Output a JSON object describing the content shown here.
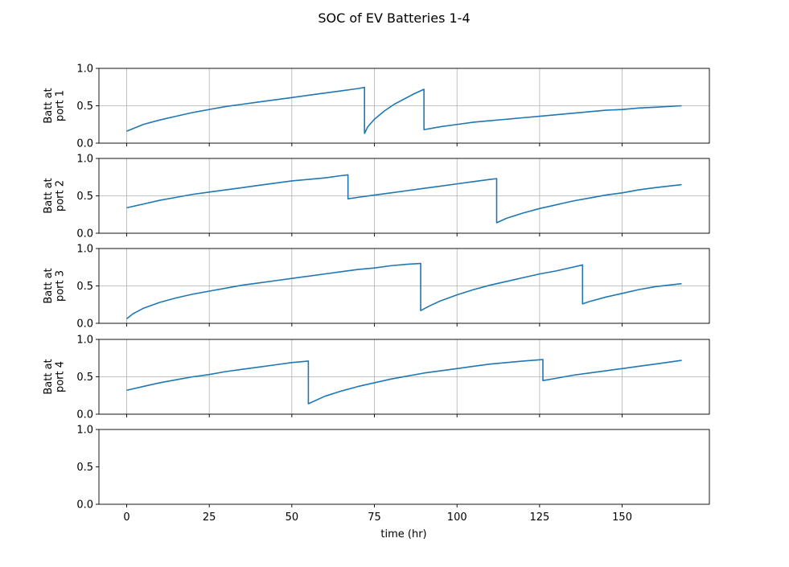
{
  "chart_data": {
    "type": "line",
    "title": "SOC of EV Batteries 1-4",
    "xlabel": "time (hr)",
    "xlim": [
      -8.4,
      176.4
    ],
    "xticks": [
      0,
      25,
      50,
      75,
      100,
      125,
      150
    ],
    "grid": true,
    "line_color": "#1f77b4",
    "subplots": [
      {
        "ylabel_lines": [
          "Batt at",
          "port 1"
        ],
        "ylim": [
          0,
          1
        ],
        "yticks": [
          "0.0",
          "0.5",
          "1.0"
        ],
        "x": [
          0,
          5,
          10,
          15,
          20,
          25,
          30,
          35,
          40,
          45,
          50,
          55,
          60,
          65,
          70,
          72,
          72,
          73,
          75,
          78,
          81,
          84,
          87,
          90,
          90,
          95,
          100,
          105,
          110,
          115,
          120,
          125,
          130,
          135,
          140,
          145,
          150,
          155,
          160,
          168
        ],
        "y": [
          0.16,
          0.25,
          0.31,
          0.36,
          0.41,
          0.45,
          0.49,
          0.52,
          0.55,
          0.58,
          0.61,
          0.64,
          0.67,
          0.7,
          0.73,
          0.745,
          0.13,
          0.22,
          0.32,
          0.43,
          0.52,
          0.59,
          0.66,
          0.72,
          0.18,
          0.22,
          0.25,
          0.28,
          0.3,
          0.32,
          0.34,
          0.36,
          0.38,
          0.4,
          0.42,
          0.44,
          0.45,
          0.47,
          0.48,
          0.5
        ]
      },
      {
        "ylabel_lines": [
          "Batt at",
          "port 2"
        ],
        "ylim": [
          0,
          1
        ],
        "yticks": [
          "0.0",
          "0.5",
          "1.0"
        ],
        "x": [
          0,
          5,
          10,
          15,
          20,
          25,
          30,
          35,
          40,
          45,
          50,
          55,
          60,
          65,
          67,
          67,
          70,
          75,
          80,
          85,
          90,
          95,
          100,
          105,
          110,
          112,
          112,
          115,
          120,
          125,
          130,
          135,
          140,
          145,
          150,
          155,
          160,
          168
        ],
        "y": [
          0.34,
          0.39,
          0.44,
          0.48,
          0.52,
          0.55,
          0.58,
          0.61,
          0.64,
          0.67,
          0.7,
          0.72,
          0.74,
          0.77,
          0.78,
          0.46,
          0.48,
          0.51,
          0.54,
          0.57,
          0.6,
          0.63,
          0.66,
          0.69,
          0.72,
          0.73,
          0.14,
          0.2,
          0.27,
          0.33,
          0.38,
          0.43,
          0.47,
          0.51,
          0.54,
          0.58,
          0.61,
          0.65
        ]
      },
      {
        "ylabel_lines": [
          "Batt at",
          "port 3"
        ],
        "ylim": [
          0,
          1
        ],
        "yticks": [
          "0.0",
          "0.5",
          "1.0"
        ],
        "x": [
          0,
          2,
          5,
          10,
          15,
          20,
          25,
          30,
          35,
          40,
          45,
          50,
          55,
          60,
          65,
          70,
          75,
          80,
          85,
          89,
          89,
          92,
          95,
          100,
          105,
          110,
          115,
          120,
          125,
          130,
          135,
          138,
          138,
          140,
          145,
          150,
          155,
          160,
          168
        ],
        "y": [
          0.06,
          0.13,
          0.2,
          0.28,
          0.34,
          0.39,
          0.43,
          0.47,
          0.51,
          0.54,
          0.57,
          0.6,
          0.63,
          0.66,
          0.69,
          0.72,
          0.74,
          0.77,
          0.79,
          0.8,
          0.17,
          0.24,
          0.3,
          0.38,
          0.45,
          0.51,
          0.56,
          0.61,
          0.66,
          0.7,
          0.75,
          0.78,
          0.26,
          0.29,
          0.35,
          0.4,
          0.45,
          0.49,
          0.53
        ]
      },
      {
        "ylabel_lines": [
          "Batt at",
          "port 4"
        ],
        "ylim": [
          0,
          1
        ],
        "yticks": [
          "0.0",
          "0.5",
          "1.0"
        ],
        "x": [
          0,
          5,
          10,
          15,
          20,
          25,
          30,
          35,
          40,
          45,
          50,
          55,
          55,
          60,
          65,
          70,
          75,
          80,
          85,
          90,
          95,
          100,
          105,
          110,
          115,
          120,
          126,
          126,
          130,
          135,
          140,
          145,
          150,
          155,
          160,
          168
        ],
        "y": [
          0.32,
          0.37,
          0.42,
          0.46,
          0.5,
          0.53,
          0.57,
          0.6,
          0.63,
          0.66,
          0.69,
          0.71,
          0.14,
          0.24,
          0.31,
          0.37,
          0.42,
          0.47,
          0.51,
          0.55,
          0.58,
          0.61,
          0.64,
          0.67,
          0.69,
          0.71,
          0.73,
          0.45,
          0.48,
          0.52,
          0.55,
          0.58,
          0.61,
          0.64,
          0.67,
          0.72
        ]
      },
      {
        "ylabel_lines": [],
        "ylim": [
          0,
          1
        ],
        "yticks": [
          "0.0",
          "0.5",
          "1.0"
        ],
        "x": [],
        "y": []
      }
    ]
  }
}
